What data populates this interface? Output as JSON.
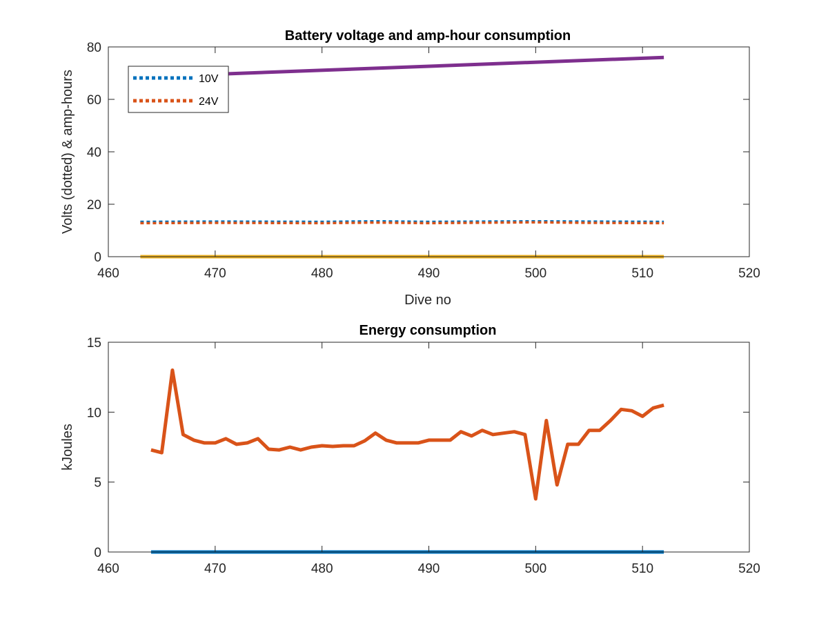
{
  "chart_data": [
    {
      "type": "line",
      "title": "Battery voltage and amp-hour consumption",
      "xlabel": "Dive no",
      "ylabel": "Volts (dotted) & amp-hours",
      "xlim": [
        460,
        520
      ],
      "ylim": [
        0,
        80
      ],
      "xticks": [
        460,
        470,
        480,
        490,
        500,
        510,
        520
      ],
      "yticks": [
        0,
        20,
        40,
        60,
        80
      ],
      "grid": false,
      "legend_position": "top-left",
      "legend": [
        "10V",
        "24V"
      ],
      "series": [
        {
          "name": "10V",
          "style": "dotted",
          "color": "#0072BD",
          "x": [
            463,
            470,
            480,
            485,
            490,
            500,
            505,
            512
          ],
          "y": [
            13.3,
            13.4,
            13.3,
            13.5,
            13.3,
            13.5,
            13.4,
            13.3
          ]
        },
        {
          "name": "24V",
          "style": "dotted",
          "color": "#D95319",
          "x": [
            463,
            470,
            480,
            485,
            490,
            500,
            505,
            512
          ],
          "y": [
            12.8,
            12.9,
            12.8,
            13.0,
            12.8,
            13.1,
            12.9,
            12.8
          ]
        },
        {
          "style": "solid",
          "color": "#EDB120",
          "x": [
            463,
            512
          ],
          "y": [
            0,
            0
          ]
        },
        {
          "style": "solid",
          "color": "#7E2F8E",
          "x": [
            463,
            512
          ],
          "y": [
            68.5,
            76
          ]
        }
      ]
    },
    {
      "type": "line",
      "title": "Energy consumption",
      "xlabel": "",
      "ylabel": "kJoules",
      "xlim": [
        460,
        520
      ],
      "ylim": [
        0,
        15
      ],
      "xticks": [
        460,
        470,
        480,
        490,
        500,
        510,
        520
      ],
      "yticks": [
        0,
        5,
        10,
        15
      ],
      "grid": false,
      "series": [
        {
          "style": "solid",
          "color": "#D95319",
          "x": [
            464,
            465,
            466,
            467,
            468,
            469,
            470,
            471,
            472,
            473,
            474,
            475,
            476,
            477,
            478,
            479,
            480,
            481,
            482,
            483,
            484,
            485,
            486,
            487,
            488,
            489,
            490,
            491,
            492,
            493,
            494,
            495,
            496,
            497,
            498,
            499,
            500,
            501,
            502,
            503,
            504,
            505,
            506,
            507,
            508,
            509,
            510,
            511,
            512
          ],
          "y": [
            7.3,
            7.1,
            13.0,
            8.4,
            8.0,
            7.8,
            7.8,
            8.1,
            7.7,
            7.8,
            8.1,
            7.35,
            7.3,
            7.5,
            7.3,
            7.5,
            7.6,
            7.55,
            7.6,
            7.6,
            7.95,
            8.5,
            8.0,
            7.8,
            7.8,
            7.8,
            8.0,
            8.0,
            8.0,
            8.6,
            8.3,
            8.7,
            8.4,
            8.5,
            8.6,
            8.4,
            3.8,
            9.4,
            4.8,
            7.7,
            7.7,
            8.7,
            8.7,
            9.4,
            10.2,
            10.1,
            9.7,
            10.3,
            10.5
          ]
        },
        {
          "style": "solid",
          "color": "#0072BD",
          "x": [
            464,
            512
          ],
          "y": [
            0,
            0
          ]
        }
      ]
    }
  ]
}
